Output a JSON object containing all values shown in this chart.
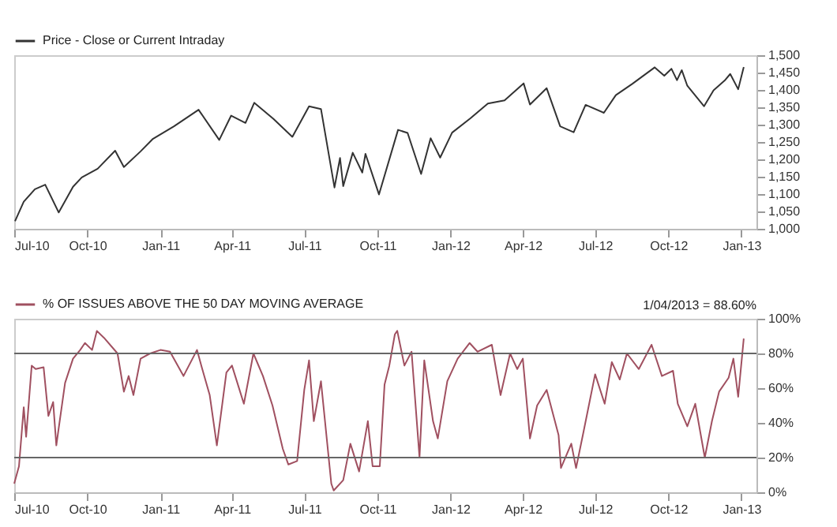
{
  "chart_data": [
    {
      "type": "line",
      "x": [
        "2010-07-02",
        "2010-07-13",
        "2010-07-27",
        "2010-08-09",
        "2010-08-26",
        "2010-09-13",
        "2010-09-24",
        "2010-10-14",
        "2010-11-05",
        "2010-11-16",
        "2010-12-07",
        "2010-12-22",
        "2011-01-18",
        "2011-02-18",
        "2011-03-16",
        "2011-03-31",
        "2011-04-18",
        "2011-04-29",
        "2011-05-23",
        "2011-06-16",
        "2011-07-07",
        "2011-07-22",
        "2011-08-08",
        "2011-08-15",
        "2011-08-19",
        "2011-08-31",
        "2011-09-12",
        "2011-09-16",
        "2011-10-03",
        "2011-10-27",
        "2011-11-08",
        "2011-11-25",
        "2011-12-07",
        "2011-12-19",
        "2012-01-03",
        "2012-01-26",
        "2012-02-17",
        "2012-03-09",
        "2012-04-02",
        "2012-04-10",
        "2012-05-01",
        "2012-05-18",
        "2012-06-04",
        "2012-06-19",
        "2012-07-12",
        "2012-07-27",
        "2012-08-17",
        "2012-09-14",
        "2012-09-26",
        "2012-10-05",
        "2012-10-12",
        "2012-10-18",
        "2012-10-25",
        "2012-11-15",
        "2012-11-27",
        "2012-12-11",
        "2012-12-18",
        "2012-12-28",
        "2013-01-04"
      ],
      "series": [
        {
          "name": "Price - Close or Current Intraday",
          "color": "#333333",
          "values": [
            1022,
            1078,
            1114,
            1127,
            1047,
            1121,
            1148,
            1173,
            1225,
            1178,
            1223,
            1258,
            1295,
            1343,
            1256,
            1326,
            1305,
            1363,
            1317,
            1265,
            1353,
            1345,
            1119,
            1204,
            1123,
            1219,
            1162,
            1216,
            1099,
            1285,
            1276,
            1158,
            1261,
            1205,
            1277,
            1318,
            1361,
            1370,
            1419,
            1358,
            1405,
            1295,
            1278,
            1357,
            1334,
            1385,
            1418,
            1465,
            1441,
            1461,
            1428,
            1457,
            1412,
            1353,
            1399,
            1427,
            1446,
            1402,
            1466
          ]
        }
      ],
      "xlim": [
        "2010-07-01",
        "2013-01-20"
      ],
      "xticks": [
        {
          "value": "2010-07-01",
          "label": "Jul-10"
        },
        {
          "value": "2010-10-01",
          "label": "Oct-10"
        },
        {
          "value": "2011-01-01",
          "label": "Jan-11"
        },
        {
          "value": "2011-04-01",
          "label": "Apr-11"
        },
        {
          "value": "2011-07-01",
          "label": "Jul-11"
        },
        {
          "value": "2011-10-01",
          "label": "Oct-11"
        },
        {
          "value": "2012-01-01",
          "label": "Jan-12"
        },
        {
          "value": "2012-04-01",
          "label": "Apr-12"
        },
        {
          "value": "2012-07-01",
          "label": "Jul-12"
        },
        {
          "value": "2012-10-01",
          "label": "Oct-12"
        },
        {
          "value": "2013-01-01",
          "label": "Jan-13"
        }
      ],
      "ylim": [
        1000,
        1500
      ],
      "yticks": [
        {
          "value": 1000,
          "label": "1,000"
        },
        {
          "value": 1050,
          "label": "1,050"
        },
        {
          "value": 1100,
          "label": "1,100"
        },
        {
          "value": 1150,
          "label": "1,150"
        },
        {
          "value": 1200,
          "label": "1,200"
        },
        {
          "value": 1250,
          "label": "1,250"
        },
        {
          "value": 1300,
          "label": "1,300"
        },
        {
          "value": 1350,
          "label": "1,350"
        },
        {
          "value": 1400,
          "label": "1,400"
        },
        {
          "value": 1450,
          "label": "1,450"
        },
        {
          "value": 1500,
          "label": "1,500"
        }
      ],
      "legend": "top left",
      "grid": false,
      "marker": "none",
      "line_style": "solid"
    },
    {
      "type": "line",
      "x": [
        "2010-07-01",
        "2010-07-07",
        "2010-07-13",
        "2010-07-16",
        "2010-07-23",
        "2010-07-28",
        "2010-08-07",
        "2010-08-13",
        "2010-08-19",
        "2010-08-23",
        "2010-08-26",
        "2010-09-03",
        "2010-09-13",
        "2010-09-22",
        "2010-09-28",
        "2010-10-07",
        "2010-10-13",
        "2010-10-22",
        "2010-11-08",
        "2010-11-16",
        "2010-11-22",
        "2010-11-28",
        "2010-12-07",
        "2010-12-19",
        "2011-01-01",
        "2011-01-13",
        "2011-01-30",
        "2011-02-16",
        "2011-02-22",
        "2011-03-04",
        "2011-03-13",
        "2011-03-25",
        "2011-04-01",
        "2011-04-16",
        "2011-04-28",
        "2011-05-10",
        "2011-05-22",
        "2011-06-04",
        "2011-06-11",
        "2011-06-22",
        "2011-07-01",
        "2011-07-07",
        "2011-07-13",
        "2011-07-22",
        "2011-08-04",
        "2011-08-07",
        "2011-08-19",
        "2011-08-28",
        "2011-09-08",
        "2011-09-19",
        "2011-09-25",
        "2011-10-04",
        "2011-10-10",
        "2011-10-16",
        "2011-10-23",
        "2011-10-26",
        "2011-11-04",
        "2011-11-13",
        "2011-11-23",
        "2011-11-29",
        "2011-12-10",
        "2011-12-16",
        "2011-12-28",
        "2012-01-10",
        "2012-01-25",
        "2012-02-04",
        "2012-02-22",
        "2012-03-04",
        "2012-03-16",
        "2012-03-25",
        "2012-04-01",
        "2012-04-10",
        "2012-04-19",
        "2012-05-01",
        "2012-05-16",
        "2012-05-19",
        "2012-06-01",
        "2012-06-07",
        "2012-06-16",
        "2012-07-01",
        "2012-07-13",
        "2012-07-22",
        "2012-08-01",
        "2012-08-10",
        "2012-08-25",
        "2012-09-10",
        "2012-09-23",
        "2012-10-07",
        "2012-10-13",
        "2012-10-25",
        "2012-11-04",
        "2012-11-16",
        "2012-11-25",
        "2012-12-04",
        "2012-12-16",
        "2012-12-22",
        "2012-12-28",
        "2013-01-04"
      ],
      "series": [
        {
          "name": "% OF ISSUES ABOVE THE 50 DAY MOVING AVERAGE",
          "color": "#a05060",
          "values": [
            5,
            15,
            49,
            32,
            73,
            71,
            72,
            44,
            52,
            27,
            37,
            63,
            77,
            82,
            86,
            82,
            93,
            89,
            80,
            58,
            67,
            56,
            77,
            80,
            82,
            81,
            67,
            82,
            72,
            56,
            27,
            69,
            73,
            51,
            80,
            67,
            50,
            25,
            16,
            18,
            59,
            76,
            41,
            64,
            5,
            1,
            7,
            28,
            12,
            41,
            15,
            15,
            62,
            73,
            91,
            93,
            73,
            81,
            20,
            76,
            41,
            31,
            64,
            77,
            86,
            81,
            85,
            56,
            80,
            71,
            77,
            31,
            50,
            59,
            33,
            14,
            28,
            14,
            34,
            68,
            51,
            75,
            65,
            80,
            71,
            85,
            67,
            70,
            51,
            38,
            51,
            20,
            41,
            58,
            66,
            77,
            55,
            88.6
          ]
        }
      ],
      "xlim": [
        "2010-07-01",
        "2013-01-20"
      ],
      "xticks": [
        {
          "value": "2010-07-01",
          "label": "Jul-10"
        },
        {
          "value": "2010-10-01",
          "label": "Oct-10"
        },
        {
          "value": "2011-01-01",
          "label": "Jan-11"
        },
        {
          "value": "2011-04-01",
          "label": "Apr-11"
        },
        {
          "value": "2011-07-01",
          "label": "Jul-11"
        },
        {
          "value": "2011-10-01",
          "label": "Oct-11"
        },
        {
          "value": "2012-01-01",
          "label": "Jan-12"
        },
        {
          "value": "2012-04-01",
          "label": "Apr-12"
        },
        {
          "value": "2012-07-01",
          "label": "Jul-12"
        },
        {
          "value": "2012-10-01",
          "label": "Oct-12"
        },
        {
          "value": "2013-01-01",
          "label": "Jan-13"
        }
      ],
      "ylim": [
        0,
        100
      ],
      "yticks": [
        {
          "value": 0,
          "label": "0%"
        },
        {
          "value": 20,
          "label": "20%"
        },
        {
          "value": 40,
          "label": "40%"
        },
        {
          "value": 60,
          "label": "60%"
        },
        {
          "value": 80,
          "label": "80%"
        },
        {
          "value": 100,
          "label": "100%"
        }
      ],
      "ref_lines": [
        {
          "axis": "y",
          "value": 20,
          "color": "#666666"
        },
        {
          "axis": "y",
          "value": 80,
          "color": "#666666"
        }
      ],
      "annotations": [
        "1/04/2013 = 88.60%"
      ],
      "legend": "top left",
      "grid": false,
      "marker": "none",
      "line_style": "solid"
    }
  ]
}
